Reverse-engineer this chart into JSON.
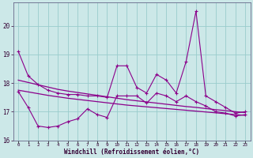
{
  "x": [
    0,
    1,
    2,
    3,
    4,
    5,
    6,
    7,
    8,
    9,
    10,
    11,
    12,
    13,
    14,
    15,
    16,
    17,
    18,
    19,
    20,
    21,
    22,
    23
  ],
  "y_upper": [
    19.1,
    18.25,
    17.95,
    17.75,
    17.65,
    17.6,
    17.6,
    17.55,
    17.55,
    17.5,
    18.6,
    18.6,
    17.85,
    17.65,
    18.3,
    18.1,
    17.65,
    18.75,
    20.5,
    17.55,
    17.35,
    17.15,
    16.95,
    17.0
  ],
  "y_lower": [
    17.7,
    17.15,
    16.5,
    16.45,
    16.5,
    16.65,
    16.75,
    17.1,
    16.9,
    16.8,
    17.55,
    17.55,
    17.55,
    17.3,
    17.65,
    17.55,
    17.35,
    17.55,
    17.35,
    17.2,
    17.0,
    16.95,
    16.85,
    16.9
  ],
  "trend1": [
    18.1,
    18.02,
    17.94,
    17.86,
    17.78,
    17.72,
    17.67,
    17.62,
    17.57,
    17.52,
    17.47,
    17.42,
    17.38,
    17.34,
    17.3,
    17.26,
    17.22,
    17.18,
    17.15,
    17.11,
    17.07,
    17.04,
    17.0,
    16.97
  ],
  "trend2": [
    17.75,
    17.69,
    17.63,
    17.57,
    17.52,
    17.47,
    17.43,
    17.39,
    17.35,
    17.31,
    17.27,
    17.23,
    17.2,
    17.17,
    17.14,
    17.11,
    17.08,
    17.05,
    17.02,
    16.99,
    16.96,
    16.93,
    16.9,
    16.87
  ],
  "line_color": "#8B008B",
  "bg_color": "#cce8e8",
  "grid_color": "#99cccc",
  "xlabel": "Windchill (Refroidissement éolien,°C)",
  "ylim": [
    16.0,
    20.8
  ],
  "yticks": [
    16,
    17,
    18,
    19,
    20
  ],
  "xlim": [
    -0.5,
    23.5
  ]
}
